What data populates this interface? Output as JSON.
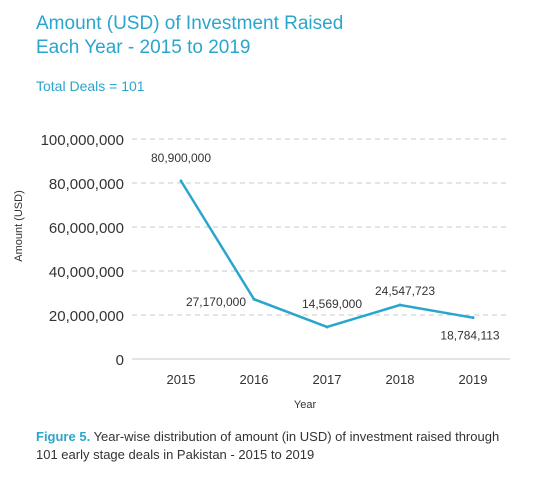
{
  "colors": {
    "accent": "#2aa6cc",
    "line": "#2aa6cc",
    "grid": "#c8c8c8",
    "text": "#333333"
  },
  "header": {
    "title_line1": "Amount (USD) of Investment Raised",
    "title_line2": "Each Year - 2015 to 2019",
    "subtitle": "Total Deals = 101"
  },
  "caption": {
    "label": "Figure 5.",
    "text": "Year-wise distribution of amount (in USD) of investment raised through 101 early stage deals in Pakistan - 2015 to 2019"
  },
  "chart_data": {
    "type": "line",
    "x": [
      "2015",
      "2016",
      "2017",
      "2018",
      "2019"
    ],
    "series": [
      {
        "values": [
          80900000,
          27170000,
          14569000,
          24547723,
          18784113
        ],
        "data_labels": [
          "80,900,000",
          "27,170,000",
          "14,569,000",
          "24,547,723",
          "18,784,113"
        ]
      }
    ],
    "xlabel": "Year",
    "ylabel": "Amount (USD)",
    "ylim": [
      0,
      100000000
    ],
    "yticks": [
      0,
      20000000,
      40000000,
      60000000,
      80000000,
      100000000
    ],
    "ytick_labels": [
      "0",
      "20,000,000",
      "40,000,000",
      "60,000,000",
      "80,000,000",
      "100,000,000"
    ],
    "grid": true,
    "legend": "none"
  }
}
